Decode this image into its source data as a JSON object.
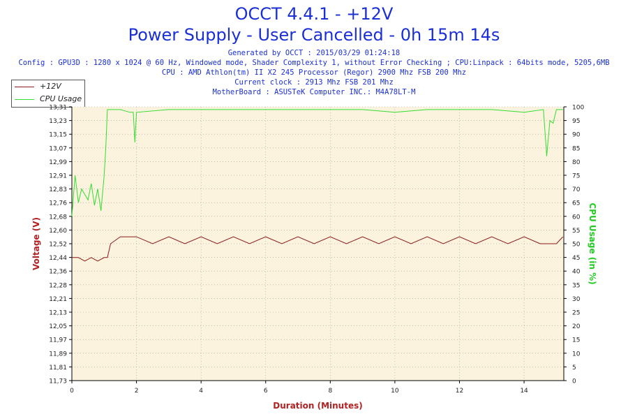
{
  "header": {
    "title": "OCCT 4.4.1 - +12V",
    "subtitle": "Power Supply - User Cancelled - 0h 15m 14s",
    "generated": "Generated by OCCT : 2015/03/29 01:24:18",
    "config": "Config : GPU3D : 1280 x 1024 @ 60 Hz, Windowed mode, Shader Complexity 1, without Error Checking ; CPU:Linpack : 64bits mode, 5205,6MB",
    "cpu": "CPU : AMD Athlon(tm) II X2 245 Processor (Regor) 2900 Mhz FSB 200 Mhz",
    "clock": "Current clock : 2913 Mhz FSB 201 Mhz",
    "motherboard": "MotherBoard : ASUSTeK Computer INC.: M4A78LT-M"
  },
  "legend": [
    {
      "name": "+12V",
      "color": "#8b1a1a"
    },
    {
      "name": "CPU Usage",
      "color": "#33dd33"
    }
  ],
  "colors": {
    "voltage": "#8b1a1a",
    "cpu": "#33dd33",
    "plot_bg": "#fbf3dd",
    "grid": "#9a9a9a",
    "title": "#1a2fd6"
  },
  "chart_data": {
    "type": "line",
    "xlabel": "Duration (Minutes)",
    "ylabel_left": "Voltage (V)",
    "ylabel_right": "CPU Usage (in %)",
    "xlim": [
      0,
      15.23
    ],
    "ylim_left": [
      11.73,
      13.31
    ],
    "ylim_right": [
      0,
      100
    ],
    "x_ticks": [
      "0",
      "2",
      "4",
      "6",
      "8",
      "10",
      "12",
      "14"
    ],
    "x_tick_values": [
      0,
      2,
      4,
      6,
      8,
      10,
      12,
      14
    ],
    "y_left_ticks": [
      "11,73",
      "11,81",
      "11,89",
      "11,97",
      "12,05",
      "12,13",
      "12,21",
      "12,28",
      "12,36",
      "12,44",
      "12,52",
      "12,60",
      "12,68",
      "12,76",
      "12,83",
      "12,91",
      "12,99",
      "13,07",
      "13,15",
      "13,23",
      "13,31"
    ],
    "y_right_ticks": [
      "0",
      "5",
      "10",
      "15",
      "20",
      "25",
      "30",
      "35",
      "40",
      "45",
      "50",
      "55",
      "60",
      "65",
      "70",
      "75",
      "80",
      "85",
      "90",
      "95",
      "100"
    ],
    "grid": true,
    "legend_position": "top-left",
    "series": [
      {
        "name": "+12V",
        "axis": "left",
        "x": [
          0,
          0.2,
          0.4,
          0.6,
          0.8,
          1.0,
          1.1,
          1.2,
          1.5,
          2.0,
          2.5,
          3.0,
          3.5,
          4.0,
          4.5,
          5.0,
          5.5,
          6.0,
          6.5,
          7.0,
          7.5,
          8.0,
          8.5,
          9.0,
          9.5,
          10.0,
          10.5,
          11.0,
          11.5,
          12.0,
          12.5,
          13.0,
          13.5,
          14.0,
          14.5,
          15.0,
          15.2
        ],
        "y": [
          12.44,
          12.44,
          12.42,
          12.44,
          12.42,
          12.44,
          12.44,
          12.52,
          12.56,
          12.56,
          12.52,
          12.56,
          12.52,
          12.56,
          12.52,
          12.56,
          12.52,
          12.56,
          12.52,
          12.56,
          12.52,
          12.56,
          12.52,
          12.56,
          12.52,
          12.56,
          12.52,
          12.56,
          12.52,
          12.56,
          12.52,
          12.56,
          12.52,
          12.56,
          12.52,
          12.52,
          12.56
        ]
      },
      {
        "name": "CPU Usage",
        "axis": "right",
        "x": [
          0,
          0.1,
          0.2,
          0.3,
          0.4,
          0.5,
          0.6,
          0.7,
          0.8,
          0.9,
          1.0,
          1.05,
          1.1,
          1.2,
          1.5,
          1.8,
          1.9,
          1.95,
          2.0,
          3.0,
          4.0,
          5.0,
          6.0,
          7.0,
          8.0,
          9.0,
          10.0,
          11.0,
          12.0,
          13.0,
          14.0,
          14.6,
          14.7,
          14.8,
          14.9,
          15.0,
          15.2
        ],
        "y": [
          60,
          75,
          65,
          70,
          68,
          66,
          72,
          64,
          70,
          62,
          75,
          85,
          99,
          99,
          99,
          98,
          98,
          87,
          98,
          99,
          99,
          99,
          99,
          99,
          99,
          99,
          98,
          99,
          99,
          99,
          98,
          99,
          82,
          95,
          94,
          99,
          99
        ]
      }
    ]
  }
}
